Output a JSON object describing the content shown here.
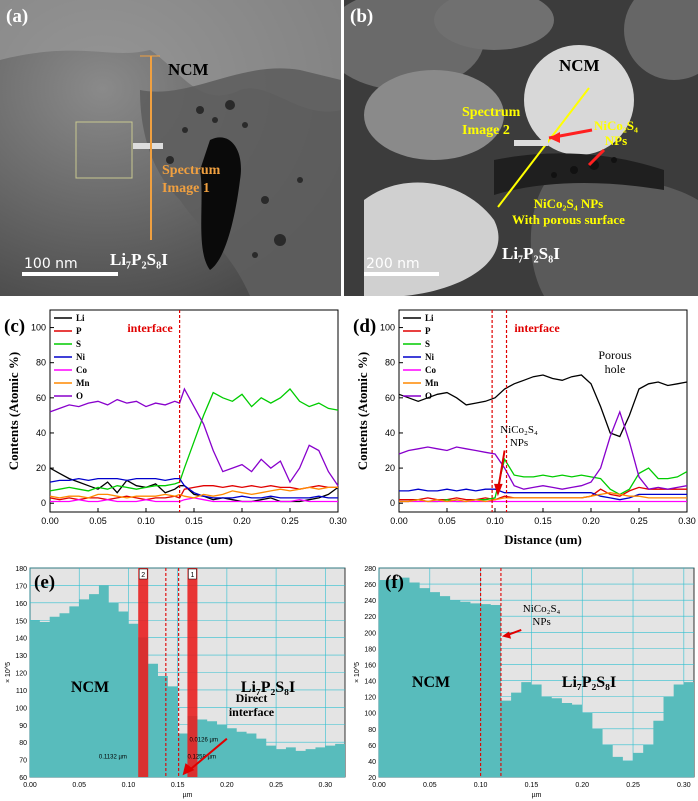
{
  "panel_a": {
    "label": "(a)",
    "ncm": "NCM",
    "spectrum": "Spectrum\nImage 1",
    "lps": "Li₇P₂S₈I",
    "scalebar": "100 nm"
  },
  "panel_b": {
    "label": "(b)",
    "ncm": "NCM",
    "spectrum": "Spectrum\nImage 2",
    "nps": "NiCo₂S₄\nNPs",
    "porous": "NiCo₂S₄ NPs\nWith porous surface",
    "lps": "Li₇P₂S₈I",
    "scalebar": "200 nm"
  },
  "chart_data": [
    {
      "panel": "(c)",
      "type": "line",
      "xlabel": "Distance (um)",
      "ylabel": "Contents (Atomic %)",
      "xlim": [
        0,
        0.3
      ],
      "ylim": [
        -5,
        110
      ],
      "xticks": [
        "0.00",
        "0.05",
        "0.10",
        "0.15",
        "0.20",
        "0.25",
        "0.30"
      ],
      "yticks": [
        "0",
        "20",
        "40",
        "60",
        "80",
        "100"
      ],
      "annotation": "interface",
      "interface_x": 0.135,
      "legend": [
        "Li",
        "P",
        "S",
        "Ni",
        "Co",
        "Mn",
        "O"
      ],
      "colors": [
        "#000000",
        "#e00000",
        "#00cc00",
        "#0000cc",
        "#ff00ff",
        "#ff8800",
        "#8800cc"
      ],
      "x": [
        0.0,
        0.01,
        0.02,
        0.03,
        0.04,
        0.05,
        0.06,
        0.07,
        0.08,
        0.09,
        0.1,
        0.11,
        0.12,
        0.13,
        0.135,
        0.14,
        0.15,
        0.16,
        0.17,
        0.18,
        0.19,
        0.2,
        0.21,
        0.22,
        0.23,
        0.24,
        0.25,
        0.26,
        0.27,
        0.28,
        0.29,
        0.3
      ],
      "series": [
        {
          "name": "Li",
          "values": [
            20,
            17,
            14,
            12,
            10,
            8,
            12,
            6,
            13,
            10,
            9,
            11,
            6,
            8,
            10,
            10,
            5,
            4,
            2,
            3,
            2,
            1,
            1,
            2,
            3,
            1,
            1,
            1,
            2,
            3,
            5,
            9
          ]
        },
        {
          "name": "P",
          "values": [
            3,
            2,
            3,
            2,
            3,
            3,
            2,
            3,
            4,
            3,
            2,
            3,
            3,
            4,
            3,
            8,
            9,
            10,
            10,
            9,
            10,
            9,
            10,
            9,
            10,
            9,
            9,
            8,
            9,
            10,
            9,
            9
          ]
        },
        {
          "name": "S",
          "values": [
            7,
            8,
            9,
            8,
            7,
            9,
            8,
            10,
            9,
            8,
            9,
            10,
            10,
            11,
            12,
            20,
            35,
            50,
            63,
            60,
            58,
            62,
            55,
            60,
            57,
            60,
            65,
            58,
            55,
            57,
            54,
            53
          ]
        },
        {
          "name": "Ni",
          "values": [
            12,
            13,
            13,
            14,
            13,
            14,
            14,
            14,
            13,
            14,
            14,
            14,
            13,
            14,
            14,
            10,
            6,
            4,
            3,
            3,
            3,
            4,
            3,
            3,
            4,
            3,
            3,
            3,
            3,
            4,
            3,
            3
          ]
        },
        {
          "name": "Co",
          "values": [
            1,
            1,
            1,
            2,
            1,
            1,
            2,
            1,
            1,
            1,
            2,
            1,
            1,
            1,
            1,
            2,
            3,
            2,
            1,
            1,
            1,
            1,
            1,
            1,
            1,
            1,
            1,
            2,
            1,
            1,
            1,
            1
          ]
        },
        {
          "name": "Mn",
          "values": [
            4,
            3,
            4,
            4,
            3,
            5,
            5,
            4,
            3,
            4,
            4,
            4,
            5,
            4,
            5,
            4,
            3,
            5,
            4,
            5,
            7,
            6,
            5,
            6,
            7,
            8,
            7,
            8,
            9,
            8,
            9,
            9
          ]
        },
        {
          "name": "O",
          "values": [
            52,
            54,
            56,
            55,
            57,
            58,
            56,
            59,
            57,
            58,
            55,
            57,
            56,
            58,
            57,
            65,
            55,
            45,
            30,
            18,
            20,
            22,
            18,
            25,
            20,
            24,
            12,
            20,
            33,
            30,
            18,
            10
          ]
        }
      ]
    },
    {
      "panel": "(d)",
      "type": "line",
      "xlabel": "Distance (um)",
      "ylabel": "Contents (Atomic %)",
      "xlim": [
        0,
        0.3
      ],
      "ylim": [
        -5,
        110
      ],
      "xticks": [
        "0.00",
        "0.05",
        "0.10",
        "0.15",
        "0.20",
        "0.25",
        "0.30"
      ],
      "yticks": [
        "0",
        "20",
        "40",
        "60",
        "80",
        "100"
      ],
      "annotation": "interface",
      "interface_x": [
        0.097,
        0.112
      ],
      "text_annotations": [
        "Porous\nhole",
        "NiCo₂S₄\nNPs"
      ],
      "legend": [
        "Li",
        "P",
        "S",
        "Ni",
        "Co",
        "Mn",
        "O"
      ],
      "colors": [
        "#000000",
        "#e00000",
        "#00cc00",
        "#0000cc",
        "#ff00ff",
        "#ff8800",
        "#8800cc"
      ],
      "x": [
        0.0,
        0.01,
        0.02,
        0.03,
        0.04,
        0.05,
        0.06,
        0.07,
        0.08,
        0.09,
        0.1,
        0.11,
        0.12,
        0.13,
        0.14,
        0.15,
        0.16,
        0.17,
        0.18,
        0.19,
        0.2,
        0.21,
        0.22,
        0.23,
        0.24,
        0.25,
        0.26,
        0.27,
        0.28,
        0.29,
        0.3
      ],
      "series": [
        {
          "name": "Li",
          "values": [
            62,
            60,
            58,
            60,
            62,
            63,
            60,
            56,
            57,
            58,
            60,
            65,
            68,
            70,
            72,
            73,
            71,
            70,
            72,
            73,
            68,
            55,
            40,
            38,
            50,
            65,
            68,
            69,
            67,
            68,
            69
          ]
        },
        {
          "name": "P",
          "values": [
            2,
            2,
            2,
            3,
            2,
            2,
            3,
            2,
            2,
            3,
            2,
            4,
            3,
            3,
            3,
            3,
            3,
            3,
            3,
            3,
            4,
            8,
            5,
            4,
            7,
            9,
            8,
            8,
            8,
            8,
            8
          ]
        },
        {
          "name": "S",
          "values": [
            1,
            1,
            2,
            1,
            1,
            2,
            1,
            1,
            2,
            2,
            3,
            25,
            16,
            15,
            15,
            16,
            15,
            16,
            15,
            16,
            15,
            14,
            8,
            5,
            8,
            17,
            20,
            14,
            14,
            15,
            18
          ]
        },
        {
          "name": "Ni",
          "values": [
            7,
            7,
            8,
            7,
            7,
            8,
            7,
            8,
            7,
            8,
            8,
            6,
            6,
            6,
            6,
            6,
            6,
            6,
            6,
            6,
            6,
            4,
            3,
            2,
            3,
            5,
            5,
            5,
            5,
            5,
            5
          ]
        },
        {
          "name": "Co",
          "values": [
            1,
            1,
            1,
            1,
            1,
            1,
            1,
            1,
            1,
            1,
            1,
            1,
            1,
            1,
            1,
            1,
            1,
            1,
            1,
            1,
            1,
            1,
            1,
            1,
            1,
            1,
            1,
            1,
            1,
            1,
            1
          ]
        },
        {
          "name": "Mn",
          "values": [
            1,
            1,
            2,
            1,
            2,
            1,
            2,
            1,
            2,
            1,
            2,
            3,
            3,
            3,
            3,
            3,
            3,
            3,
            3,
            3,
            4,
            5,
            6,
            5,
            4,
            4,
            3,
            3,
            3,
            3,
            3
          ]
        },
        {
          "name": "O",
          "values": [
            28,
            30,
            31,
            32,
            31,
            30,
            32,
            31,
            30,
            29,
            28,
            20,
            10,
            8,
            9,
            10,
            9,
            8,
            9,
            10,
            12,
            20,
            38,
            52,
            35,
            15,
            8,
            9,
            8,
            9,
            10
          ]
        }
      ]
    },
    {
      "panel": "(e)",
      "type": "area",
      "xlabel": "µm",
      "ylabel": "× 10^5",
      "xlim": [
        0,
        0.32
      ],
      "ylim": [
        60,
        180
      ],
      "xticks": [
        "0.00",
        "0.05",
        "0.10",
        "0.15",
        "0.20",
        "0.25",
        "0.30"
      ],
      "yticks": [
        "60",
        "70",
        "80",
        "90",
        "100",
        "110",
        "120",
        "130",
        "140",
        "150",
        "160",
        "170",
        "180"
      ],
      "region_labels": [
        "NCM",
        "Li₇P₂S₈I"
      ],
      "annotation": "Direct\ninterface",
      "markers": [
        "2",
        "1"
      ],
      "marker_x": [
        0.115,
        0.165
      ],
      "interface_x": [
        0.138,
        0.151
      ],
      "measure_labels": [
        "0.0126 µm",
        "0.1132 µm",
        "0.1258 µm"
      ],
      "x": [
        0.0,
        0.01,
        0.02,
        0.03,
        0.04,
        0.05,
        0.06,
        0.07,
        0.08,
        0.09,
        0.1,
        0.11,
        0.12,
        0.13,
        0.14,
        0.15,
        0.16,
        0.17,
        0.18,
        0.19,
        0.2,
        0.21,
        0.22,
        0.23,
        0.24,
        0.25,
        0.26,
        0.27,
        0.28,
        0.29,
        0.3,
        0.31,
        0.32
      ],
      "values": [
        150,
        149,
        152,
        154,
        158,
        162,
        165,
        170,
        160,
        155,
        148,
        140,
        125,
        118,
        112,
        85,
        95,
        93,
        92,
        90,
        88,
        86,
        85,
        82,
        78,
        76,
        77,
        75,
        76,
        77,
        78,
        79,
        80
      ]
    },
    {
      "panel": "(f)",
      "type": "area",
      "xlabel": "µm",
      "ylabel": "× 10^5",
      "xlim": [
        0,
        0.31
      ],
      "ylim": [
        20,
        280
      ],
      "xticks": [
        "0.00",
        "0.05",
        "0.10",
        "0.15",
        "0.20",
        "0.25",
        "0.30"
      ],
      "yticks": [
        "20",
        "40",
        "60",
        "80",
        "100",
        "120",
        "140",
        "160",
        "180",
        "200",
        "220",
        "240",
        "260",
        "280"
      ],
      "region_labels": [
        "NCM",
        "Li₇P₂S₈I"
      ],
      "annotation": "NiCo₂S₄\nNPs",
      "interface_x": [
        0.1,
        0.12
      ],
      "x": [
        0.0,
        0.01,
        0.02,
        0.03,
        0.04,
        0.05,
        0.06,
        0.07,
        0.08,
        0.09,
        0.1,
        0.11,
        0.12,
        0.13,
        0.14,
        0.15,
        0.16,
        0.17,
        0.18,
        0.19,
        0.2,
        0.21,
        0.22,
        0.23,
        0.24,
        0.25,
        0.26,
        0.27,
        0.28,
        0.29,
        0.3,
        0.31
      ],
      "values": [
        265,
        266,
        268,
        262,
        255,
        250,
        245,
        240,
        238,
        236,
        235,
        234,
        115,
        125,
        138,
        135,
        120,
        118,
        112,
        110,
        100,
        80,
        60,
        45,
        40,
        50,
        60,
        90,
        120,
        135,
        138,
        138
      ]
    }
  ]
}
